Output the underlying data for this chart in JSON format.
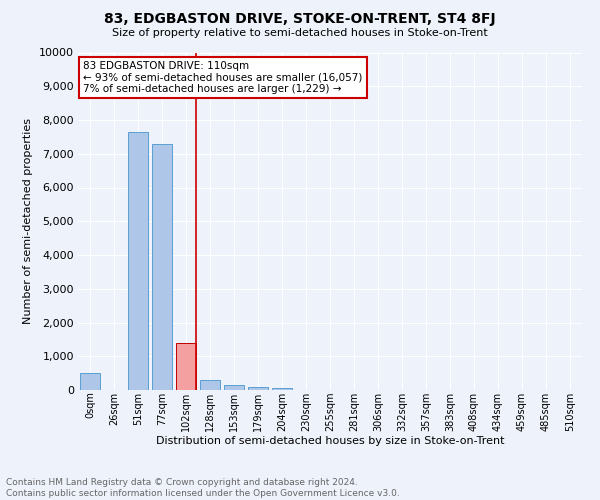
{
  "title": "83, EDGBASTON DRIVE, STOKE-ON-TRENT, ST4 8FJ",
  "subtitle": "Size of property relative to semi-detached houses in Stoke-on-Trent",
  "xlabel": "Distribution of semi-detached houses by size in Stoke-on-Trent",
  "ylabel": "Number of semi-detached properties",
  "footer_line1": "Contains HM Land Registry data © Crown copyright and database right 2024.",
  "footer_line2": "Contains public sector information licensed under the Open Government Licence v3.0.",
  "annotation_title": "83 EDGBASTON DRIVE: 110sqm",
  "annotation_line1": "← 93% of semi-detached houses are smaller (16,057)",
  "annotation_line2": "7% of semi-detached houses are larger (1,229) →",
  "bar_labels": [
    "0sqm",
    "26sqm",
    "51sqm",
    "77sqm",
    "102sqm",
    "128sqm",
    "153sqm",
    "179sqm",
    "204sqm",
    "230sqm",
    "255sqm",
    "281sqm",
    "306sqm",
    "332sqm",
    "357sqm",
    "383sqm",
    "408sqm",
    "434sqm",
    "459sqm",
    "485sqm",
    "510sqm"
  ],
  "bar_values": [
    500,
    0,
    7650,
    7280,
    1380,
    300,
    155,
    90,
    60,
    0,
    0,
    0,
    0,
    0,
    0,
    0,
    0,
    0,
    0,
    0,
    0
  ],
  "bar_color": "#aec6e8",
  "bar_edge_color": "#5a9fd4",
  "highlight_bar_index": 4,
  "highlight_bar_color": "#f4a0a0",
  "highlight_bar_edge_color": "#c00000",
  "vline_color": "#cc0000",
  "ylim": [
    0,
    10000
  ],
  "yticks": [
    0,
    1000,
    2000,
    3000,
    4000,
    5000,
    6000,
    7000,
    8000,
    9000,
    10000
  ],
  "bg_color": "#eef2fb",
  "grid_color": "#ffffff",
  "annotation_box_color": "#ffffff",
  "annotation_box_edge": "#cc0000",
  "title_fontsize": 10,
  "subtitle_fontsize": 8,
  "ylabel_fontsize": 8,
  "xlabel_fontsize": 8,
  "tick_fontsize": 8,
  "xtick_fontsize": 7,
  "footer_fontsize": 6.5,
  "footer_color": "#666666"
}
